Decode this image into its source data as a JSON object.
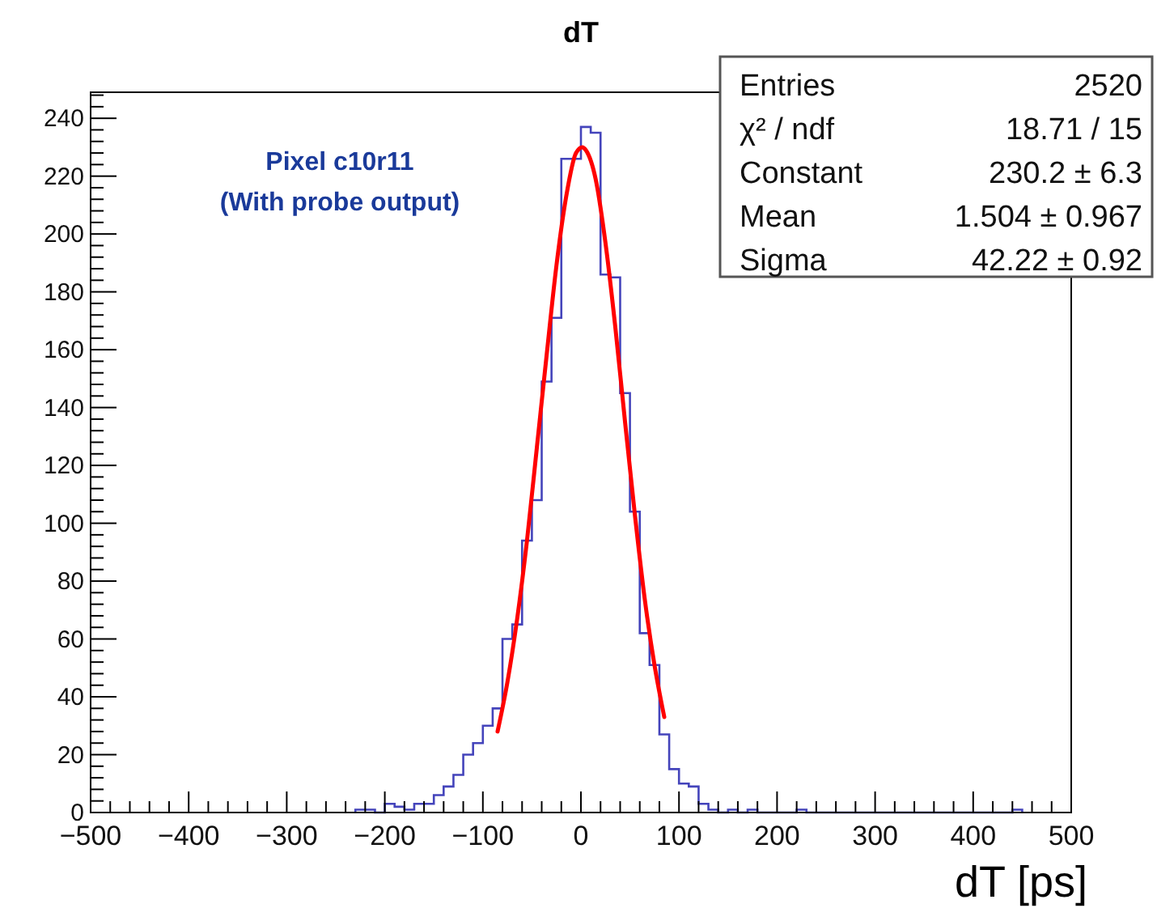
{
  "chart_data": {
    "type": "histogram",
    "title": "dT",
    "xlabel": "dT [ps]",
    "xlim": [
      -500,
      500
    ],
    "ylim": [
      0,
      249
    ],
    "xticks": [
      {
        "value": -500,
        "label": "−500"
      },
      {
        "value": -480,
        "label": null
      },
      {
        "value": -460,
        "label": null
      },
      {
        "value": -440,
        "label": null
      },
      {
        "value": -420,
        "label": null
      },
      {
        "value": -400,
        "label": "−400"
      },
      {
        "value": -380,
        "label": null
      },
      {
        "value": -360,
        "label": null
      },
      {
        "value": -340,
        "label": null
      },
      {
        "value": -320,
        "label": null
      },
      {
        "value": -300,
        "label": "−300"
      },
      {
        "value": -280,
        "label": null
      },
      {
        "value": -260,
        "label": null
      },
      {
        "value": -240,
        "label": null
      },
      {
        "value": -220,
        "label": null
      },
      {
        "value": -200,
        "label": "−200"
      },
      {
        "value": -180,
        "label": null
      },
      {
        "value": -160,
        "label": null
      },
      {
        "value": -140,
        "label": null
      },
      {
        "value": -120,
        "label": null
      },
      {
        "value": -100,
        "label": "−100"
      },
      {
        "value": -80,
        "label": null
      },
      {
        "value": -60,
        "label": null
      },
      {
        "value": -40,
        "label": null
      },
      {
        "value": -20,
        "label": null
      },
      0,
      {
        "value": 20,
        "label": null
      },
      {
        "value": 40,
        "label": null
      },
      {
        "value": 60,
        "label": null
      },
      {
        "value": 80,
        "label": null
      },
      100,
      {
        "value": 120,
        "label": null
      },
      {
        "value": 140,
        "label": null
      },
      {
        "value": 160,
        "label": null
      },
      {
        "value": 180,
        "label": null
      },
      200,
      {
        "value": 220,
        "label": null
      },
      {
        "value": 240,
        "label": null
      },
      {
        "value": 260,
        "label": null
      },
      {
        "value": 280,
        "label": null
      },
      300,
      {
        "value": 320,
        "label": null
      },
      {
        "value": 340,
        "label": null
      },
      {
        "value": 360,
        "label": null
      },
      {
        "value": 380,
        "label": null
      },
      400,
      {
        "value": 420,
        "label": null
      },
      {
        "value": 440,
        "label": null
      },
      {
        "value": 460,
        "label": null
      },
      {
        "value": 480,
        "label": null
      },
      500
    ],
    "yticks": [
      0,
      {
        "value": 4,
        "label": null
      },
      {
        "value": 8,
        "label": null
      },
      {
        "value": 12,
        "label": null
      },
      {
        "value": 16,
        "label": null
      },
      20,
      {
        "value": 24,
        "label": null
      },
      {
        "value": 28,
        "label": null
      },
      {
        "value": 32,
        "label": null
      },
      {
        "value": 36,
        "label": null
      },
      40,
      {
        "value": 44,
        "label": null
      },
      {
        "value": 48,
        "label": null
      },
      {
        "value": 52,
        "label": null
      },
      {
        "value": 56,
        "label": null
      },
      60,
      {
        "value": 64,
        "label": null
      },
      {
        "value": 68,
        "label": null
      },
      {
        "value": 72,
        "label": null
      },
      {
        "value": 76,
        "label": null
      },
      80,
      {
        "value": 84,
        "label": null
      },
      {
        "value": 88,
        "label": null
      },
      {
        "value": 92,
        "label": null
      },
      {
        "value": 96,
        "label": null
      },
      100,
      {
        "value": 104,
        "label": null
      },
      {
        "value": 108,
        "label": null
      },
      {
        "value": 112,
        "label": null
      },
      {
        "value": 116,
        "label": null
      },
      120,
      {
        "value": 124,
        "label": null
      },
      {
        "value": 128,
        "label": null
      },
      {
        "value": 132,
        "label": null
      },
      {
        "value": 136,
        "label": null
      },
      140,
      {
        "value": 144,
        "label": null
      },
      {
        "value": 148,
        "label": null
      },
      {
        "value": 152,
        "label": null
      },
      {
        "value": 156,
        "label": null
      },
      160,
      {
        "value": 164,
        "label": null
      },
      {
        "value": 168,
        "label": null
      },
      {
        "value": 172,
        "label": null
      },
      {
        "value": 176,
        "label": null
      },
      180,
      {
        "value": 184,
        "label": null
      },
      {
        "value": 188,
        "label": null
      },
      {
        "value": 192,
        "label": null
      },
      {
        "value": 196,
        "label": null
      },
      200,
      {
        "value": 204,
        "label": null
      },
      {
        "value": 208,
        "label": null
      },
      {
        "value": 212,
        "label": null
      },
      {
        "value": 216,
        "label": null
      },
      220,
      {
        "value": 224,
        "label": null
      },
      {
        "value": 228,
        "label": null
      },
      {
        "value": 232,
        "label": null
      },
      {
        "value": 236,
        "label": null
      },
      240,
      {
        "value": 244,
        "label": null
      },
      {
        "value": 248,
        "label": null
      }
    ],
    "series": [
      {
        "color": "#4444bb",
        "bins": [
          -230,
          -220,
          -210,
          -200,
          -190,
          -180,
          -170,
          -160,
          -150,
          -140,
          -130,
          -120,
          -110,
          -100,
          -90,
          -80,
          -70,
          -60,
          -50,
          -40,
          -30,
          -20,
          -10,
          0,
          10,
          20,
          30,
          40,
          50,
          60,
          70,
          80,
          90,
          100,
          110,
          120,
          130,
          140,
          150,
          160,
          170,
          180,
          190,
          200,
          210,
          220,
          230,
          240,
          250,
          260,
          270,
          280,
          290,
          300,
          310,
          320,
          330,
          340,
          350,
          360,
          370,
          380,
          390,
          400,
          410,
          420,
          430,
          440,
          450
        ],
        "values": [
          1,
          1,
          0,
          3,
          2,
          1,
          3,
          3,
          6,
          9,
          13,
          20,
          24,
          30,
          36,
          60,
          65,
          94,
          108,
          149,
          171,
          226,
          226,
          237,
          235,
          186,
          185,
          145,
          104,
          62,
          51,
          27,
          15,
          10,
          9,
          3,
          1,
          0,
          1,
          0,
          1,
          0,
          0,
          0,
          0,
          1,
          0,
          0,
          0,
          0,
          0,
          0,
          0,
          0,
          0,
          0,
          0,
          0,
          0,
          0,
          0,
          0,
          0,
          0,
          0,
          0,
          0,
          1
        ]
      },
      {
        "type": "line",
        "color": "#ff0000",
        "line_style": "solid",
        "marker": "none",
        "x": [
          -85,
          -75,
          -65,
          -55,
          -45,
          -35,
          -25,
          -15,
          -5,
          1.5,
          5,
          15,
          25,
          35,
          45,
          55,
          65,
          75,
          85
        ],
        "values": [
          28,
          45,
          67,
          94,
          126,
          158,
          189,
          213,
          228,
          230,
          229,
          219,
          197,
          168,
          135,
          103,
          74,
          51,
          33
        ]
      }
    ],
    "annotations": [
      "Pixel c10r11",
      "(With probe output)",
      "Entries",
      "2520",
      "χ² / ndf",
      "18.71 / 15",
      "Constant",
      "230.2 ± 6.3",
      "Mean",
      "1.504 ± 0.967",
      "Sigma",
      "42.22 ± 0.92"
    ],
    "grid": false
  }
}
